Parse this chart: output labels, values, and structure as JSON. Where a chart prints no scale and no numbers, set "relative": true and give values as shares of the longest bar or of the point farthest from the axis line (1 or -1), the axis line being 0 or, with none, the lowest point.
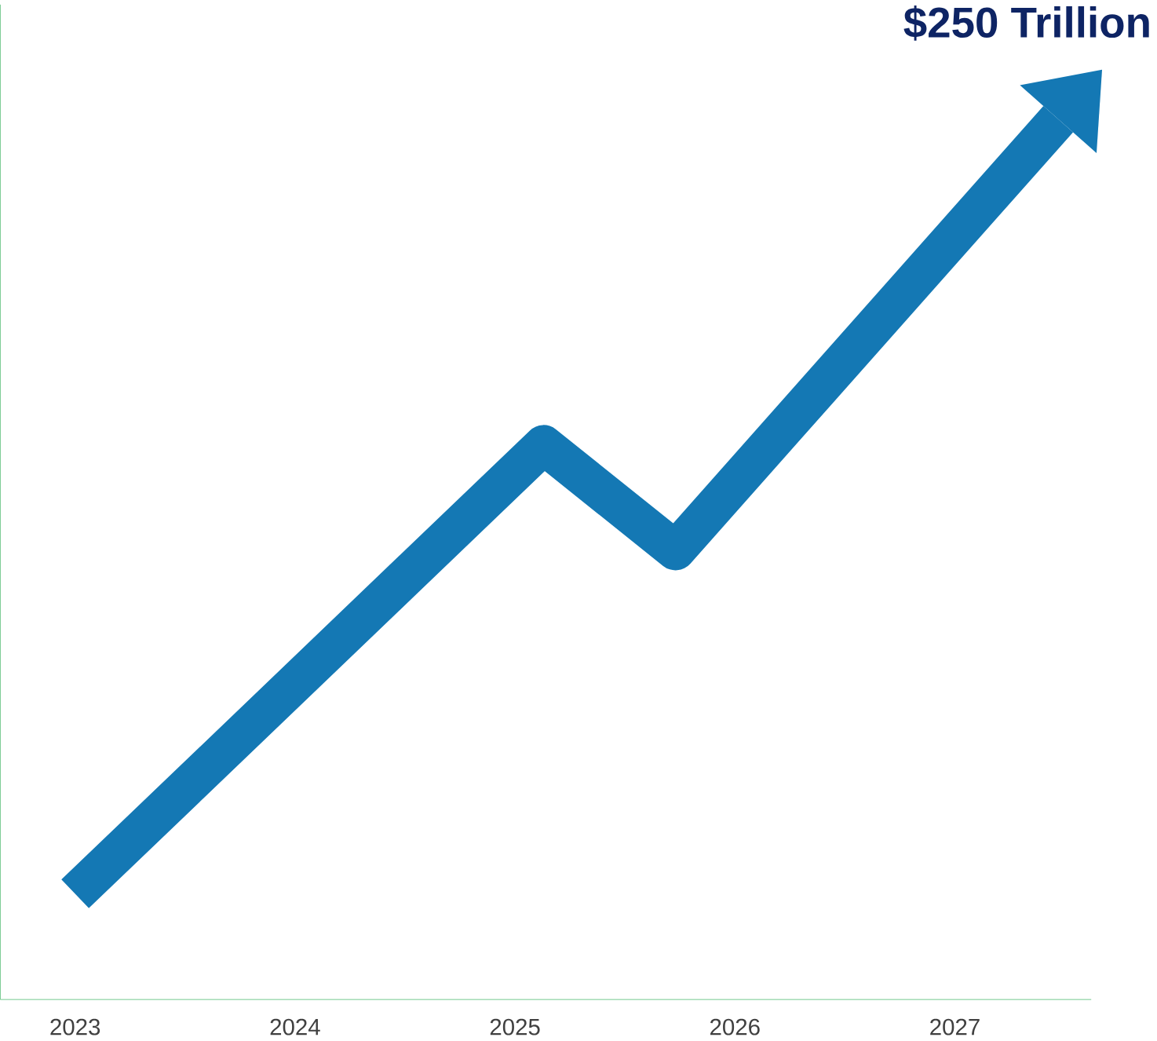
{
  "chart_data": {
    "type": "line",
    "relative": true,
    "x": [
      2023.0,
      2025.13,
      2025.73,
      2027.47
    ],
    "series": [
      {
        "color": "#1478b4",
        "values": [
          0.12,
          0.63,
          0.51,
          1.0
        ]
      }
    ],
    "xlim": [
      2022.66,
      2027.62
    ],
    "xticks": [
      {
        "value": 2023,
        "label": "2023"
      },
      {
        "value": 2024,
        "label": "2024"
      },
      {
        "value": 2025,
        "label": "2025"
      },
      {
        "value": 2026,
        "label": "2026"
      },
      {
        "value": 2027,
        "label": "2027"
      }
    ],
    "annotations": [
      {
        "text": "$250 Trillion",
        "x": 2027.47,
        "y": 1.0
      }
    ],
    "marker": "none",
    "line_style": "solid",
    "grid": false
  }
}
